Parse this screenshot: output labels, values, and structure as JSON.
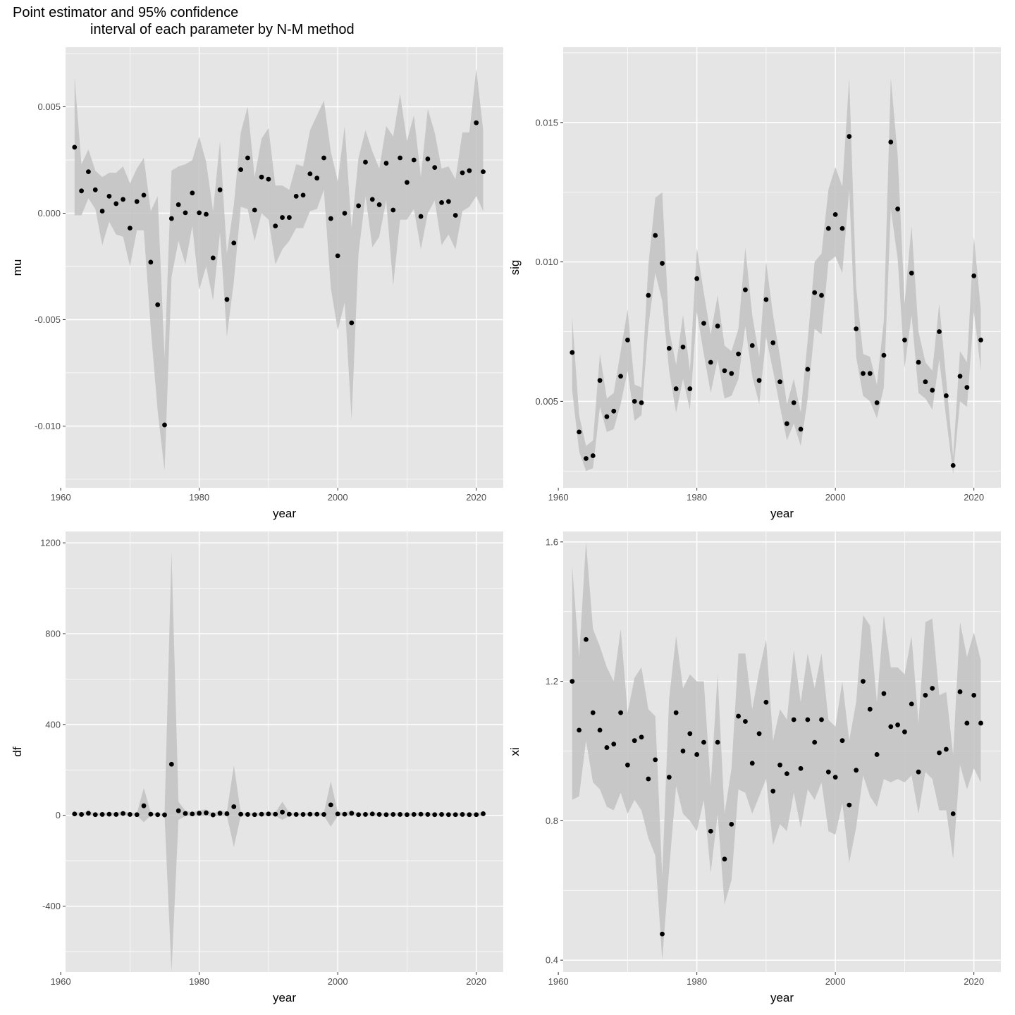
{
  "title": {
    "line1": "Point estimator and 95% confidence",
    "line2": "interval of each parameter by N-M method"
  },
  "colors": {
    "panel_bg": "#e5e5e5",
    "grid": "#ffffff",
    "ribbon": "#c2c2c2",
    "point": "#000000"
  },
  "chart_data": [
    {
      "type": "scatter",
      "id": "mu",
      "xlabel": "year",
      "ylabel": "mu",
      "xlim": [
        1960.7,
        2023.9
      ],
      "ylim": [
        -0.0129,
        0.0078
      ],
      "xticks": [
        1960,
        1980,
        2000,
        2020
      ],
      "xtick_labels": [
        "1960",
        "1980",
        "2000",
        "2020"
      ],
      "yticks": [
        -0.01,
        -0.005,
        0,
        0.005
      ],
      "ytick_labels": [
        "-0.010",
        "-0.005",
        "0.000",
        "0.005"
      ],
      "ribbon": "95% confidence interval",
      "x": [
        1962,
        1963,
        1964,
        1965,
        1966,
        1967,
        1968,
        1969,
        1970,
        1971,
        1972,
        1973,
        1974,
        1975,
        1976,
        1977,
        1978,
        1979,
        1980,
        1981,
        1982,
        1983,
        1984,
        1985,
        1986,
        1987,
        1988,
        1989,
        1990,
        1991,
        1992,
        1993,
        1994,
        1995,
        1996,
        1997,
        1998,
        1999,
        2000,
        2001,
        2002,
        2003,
        2004,
        2005,
        2006,
        2007,
        2008,
        2009,
        2010,
        2011,
        2012,
        2013,
        2014,
        2015,
        2016,
        2017,
        2018,
        2019,
        2020,
        2021
      ],
      "y": [
        0.0031,
        0.00105,
        0.00195,
        0.0011,
        0.0001,
        0.0008,
        0.00045,
        0.00065,
        -0.0007,
        0.00055,
        0.00085,
        -0.0023,
        -0.0043,
        -0.00995,
        -0.00025,
        0.0004,
        2e-05,
        0.00095,
        2e-05,
        -5e-05,
        -0.0021,
        0.0011,
        -0.00405,
        -0.0014,
        0.00205,
        0.0026,
        0.00015,
        0.0017,
        0.0016,
        -0.0006,
        -0.0002,
        -0.0002,
        0.0008,
        0.00085,
        0.00185,
        0.00165,
        0.0026,
        -0.00025,
        -0.002,
        0,
        -0.00515,
        0.00035,
        0.0024,
        0.00065,
        0.0004,
        0.00235,
        0.00015,
        0.0026,
        0.00145,
        0.0025,
        -0.00015,
        0.00255,
        0.00215,
        0.0005,
        0.00055,
        -0.0001,
        0.0019,
        0.002,
        0.00425,
        0.00195
      ],
      "lower": [
        -0.0001,
        -0.0001,
        0.0007,
        0.0002,
        -0.0015,
        -0.0004,
        -0.001,
        -0.0011,
        -0.0025,
        -0.0008,
        -0.0008,
        -0.0054,
        -0.0093,
        -0.0121,
        -0.003,
        -0.0013,
        -0.0024,
        -0.0006,
        -0.0036,
        -0.0025,
        -0.0041,
        -0.0009,
        -0.0058,
        -0.0032,
        0.0003,
        0.0002,
        -0.0013,
        0,
        -0.0003,
        -0.0024,
        -0.0017,
        -0.0013,
        -0.0007,
        -0.0007,
        0.0001,
        0.0002,
        0.0011,
        -0.0035,
        -0.0055,
        -0.0042,
        -0.0097,
        -0.0019,
        0.0008,
        -0.0016,
        -0.0011,
        0.0006,
        -0.0034,
        -0.0003,
        -0.0003,
        0.0002,
        -0.0017,
        0,
        0.0006,
        -0.0015,
        -0.001,
        -0.0017,
        0.0001,
        0.0003,
        0.0008,
        0.0001
      ],
      "upper": [
        0.0064,
        0.0023,
        0.003,
        0.002,
        0.0017,
        0.0019,
        0.0019,
        0.0022,
        0.0014,
        0.0021,
        0.0026,
        0.0001,
        0.0008,
        -0.0068,
        0.002,
        0.0022,
        0.0023,
        0.0025,
        0.0036,
        0.0024,
        0.0001,
        0.0034,
        -0.0019,
        0.0004,
        0.0038,
        0.005,
        0.0017,
        0.0035,
        0.004,
        0.0013,
        0.0013,
        0.0011,
        0.0023,
        0.0022,
        0.0039,
        0.0046,
        0.0053,
        0.0029,
        0.0015,
        0.0041,
        -0.0007,
        0.0026,
        0.0039,
        0.0029,
        0.0021,
        0.0041,
        0.0036,
        0.0056,
        0.0034,
        0.0046,
        0.0017,
        0.0049,
        0.0038,
        0.0021,
        0.0022,
        0.0016,
        0.0038,
        0.0038,
        0.0068,
        0.0039
      ]
    },
    {
      "type": "scatter",
      "id": "sig",
      "xlabel": "year",
      "ylabel": "sig",
      "xlim": [
        1960.7,
        2023.9
      ],
      "ylim": [
        0.0019,
        0.0177
      ],
      "xticks": [
        1960,
        1980,
        2000,
        2020
      ],
      "xtick_labels": [
        "1960",
        "1980",
        "2000",
        "2020"
      ],
      "yticks": [
        0.005,
        0.01,
        0.015
      ],
      "ytick_labels": [
        "0.005",
        "0.010",
        "0.015"
      ],
      "ribbon": "95% confidence interval",
      "x": [
        1962,
        1963,
        1964,
        1965,
        1966,
        1967,
        1968,
        1969,
        1970,
        1971,
        1972,
        1973,
        1974,
        1975,
        1976,
        1977,
        1978,
        1979,
        1980,
        1981,
        1982,
        1983,
        1984,
        1985,
        1986,
        1987,
        1988,
        1989,
        1990,
        1991,
        1992,
        1993,
        1994,
        1995,
        1996,
        1997,
        1998,
        1999,
        2000,
        2001,
        2002,
        2003,
        2004,
        2005,
        2006,
        2007,
        2008,
        2009,
        2010,
        2011,
        2012,
        2013,
        2014,
        2015,
        2016,
        2017,
        2018,
        2019,
        2020,
        2021
      ],
      "y": [
        0.00675,
        0.0039,
        0.00295,
        0.00305,
        0.00575,
        0.00445,
        0.00465,
        0.0059,
        0.0072,
        0.005,
        0.00495,
        0.0088,
        0.01095,
        0.00995,
        0.0069,
        0.00545,
        0.00695,
        0.00545,
        0.0094,
        0.0078,
        0.0064,
        0.0077,
        0.0061,
        0.006,
        0.0067,
        0.009,
        0.007,
        0.00575,
        0.00865,
        0.0071,
        0.0057,
        0.0042,
        0.00495,
        0.004,
        0.00615,
        0.0089,
        0.0088,
        0.0112,
        0.0117,
        0.0112,
        0.0145,
        0.0076,
        0.006,
        0.006,
        0.00495,
        0.00665,
        0.0143,
        0.0119,
        0.0072,
        0.0096,
        0.0064,
        0.0057,
        0.0054,
        0.0075,
        0.0052,
        0.0027,
        0.0059,
        0.0055,
        0.0095,
        0.0072
      ],
      "lower": [
        0.0054,
        0.0032,
        0.0025,
        0.0026,
        0.0048,
        0.0039,
        0.004,
        0.0049,
        0.0061,
        0.0043,
        0.0045,
        0.0077,
        0.0096,
        0.0086,
        0.0061,
        0.0046,
        0.0058,
        0.0047,
        0.0082,
        0.0067,
        0.0053,
        0.0065,
        0.0051,
        0.0052,
        0.0058,
        0.0077,
        0.0059,
        0.0049,
        0.0073,
        0.0061,
        0.0048,
        0.0036,
        0.0042,
        0.0034,
        0.0051,
        0.0076,
        0.0074,
        0.01,
        0.0102,
        0.0096,
        0.0126,
        0.0066,
        0.0052,
        0.005,
        0.0044,
        0.0055,
        0.0119,
        0.0101,
        0.0062,
        0.0081,
        0.0053,
        0.0051,
        0.0047,
        0.0065,
        0.0044,
        0.0024,
        0.005,
        0.0048,
        0.0082,
        0.0061
      ],
      "upper": [
        0.008,
        0.0045,
        0.0034,
        0.0036,
        0.0067,
        0.0051,
        0.0053,
        0.0068,
        0.0083,
        0.0056,
        0.0055,
        0.0099,
        0.0123,
        0.0125,
        0.0076,
        0.0063,
        0.0081,
        0.0061,
        0.0105,
        0.0089,
        0.0074,
        0.0088,
        0.007,
        0.0068,
        0.0076,
        0.0105,
        0.0081,
        0.0066,
        0.01,
        0.0081,
        0.0066,
        0.0049,
        0.0058,
        0.0046,
        0.0072,
        0.01,
        0.0103,
        0.0126,
        0.0134,
        0.0127,
        0.0166,
        0.0091,
        0.0067,
        0.0066,
        0.0056,
        0.0079,
        0.0166,
        0.0138,
        0.0085,
        0.0113,
        0.0075,
        0.0064,
        0.0061,
        0.0085,
        0.0058,
        0.003,
        0.0068,
        0.0064,
        0.0109,
        0.0083
      ]
    },
    {
      "type": "scatter",
      "id": "df",
      "xlabel": "year",
      "ylabel": "df",
      "xlim": [
        1960.7,
        2023.9
      ],
      "ylim": [
        -690,
        1250
      ],
      "xticks": [
        1960,
        1980,
        2000,
        2020
      ],
      "xtick_labels": [
        "1960",
        "1980",
        "2000",
        "2020"
      ],
      "yticks": [
        -400,
        0,
        400,
        800,
        1200
      ],
      "ytick_labels": [
        "-400",
        "0",
        "400",
        "800",
        "1200"
      ],
      "ribbon": "95% confidence interval",
      "x": [
        1962,
        1963,
        1964,
        1965,
        1966,
        1967,
        1968,
        1969,
        1970,
        1971,
        1972,
        1973,
        1974,
        1975,
        1976,
        1977,
        1978,
        1979,
        1980,
        1981,
        1982,
        1983,
        1984,
        1985,
        1986,
        1987,
        1988,
        1989,
        1990,
        1991,
        1992,
        1993,
        1994,
        1995,
        1996,
        1997,
        1998,
        1999,
        2000,
        2001,
        2002,
        2003,
        2004,
        2005,
        2006,
        2007,
        2008,
        2009,
        2010,
        2011,
        2012,
        2013,
        2014,
        2015,
        2016,
        2017,
        2018,
        2019,
        2020,
        2021
      ],
      "y": [
        6,
        4,
        9,
        3,
        4,
        5,
        4,
        8,
        4,
        3,
        42,
        5,
        3,
        2,
        225,
        20,
        8,
        6,
        9,
        11,
        2,
        9,
        7,
        38,
        5,
        4,
        3,
        5,
        6,
        5,
        14,
        5,
        4,
        4,
        5,
        5,
        4,
        46,
        6,
        5,
        9,
        3,
        4,
        6,
        4,
        3,
        4,
        4,
        3,
        4,
        5,
        4,
        3,
        4,
        3,
        3,
        4,
        3,
        3,
        7
      ],
      "lower": [
        -2,
        -2,
        -1,
        -2,
        -2,
        -2,
        -2,
        -1,
        -2,
        -2,
        -30,
        -2,
        -2,
        -3,
        -690,
        -20,
        -3,
        -2,
        -2,
        -3,
        -3,
        -4,
        -2,
        -140,
        -2,
        -2,
        -2,
        -2,
        -2,
        -2,
        -20,
        -2,
        -2,
        -2,
        -2,
        -2,
        -2,
        -50,
        -2,
        -2,
        -2,
        -2,
        -2,
        -2,
        -2,
        -2,
        -2,
        -2,
        -2,
        -2,
        -2,
        -2,
        -2,
        -2,
        -2,
        -2,
        -2,
        -2,
        -2,
        -2
      ],
      "upper": [
        14,
        12,
        18,
        9,
        11,
        12,
        11,
        18,
        11,
        9,
        120,
        12,
        8,
        7,
        1160,
        60,
        20,
        14,
        22,
        26,
        8,
        22,
        16,
        220,
        12,
        10,
        9,
        12,
        14,
        12,
        60,
        12,
        11,
        10,
        12,
        12,
        10,
        150,
        14,
        12,
        20,
        9,
        10,
        14,
        10,
        9,
        10,
        10,
        9,
        10,
        12,
        10,
        9,
        10,
        9,
        9,
        10,
        9,
        9,
        16
      ]
    },
    {
      "type": "scatter",
      "id": "xi",
      "xlabel": "year",
      "ylabel": "xi",
      "xlim": [
        1960.7,
        2023.9
      ],
      "ylim": [
        0.366,
        1.63
      ],
      "xticks": [
        1960,
        1980,
        2000,
        2020
      ],
      "xtick_labels": [
        "1960",
        "1980",
        "2000",
        "2020"
      ],
      "yticks": [
        0.4,
        0.8,
        1.2,
        1.6
      ],
      "ytick_labels": [
        "0.4",
        "0.8",
        "1.2",
        "1.6"
      ],
      "ribbon": "95% confidence interval",
      "x": [
        1962,
        1963,
        1964,
        1965,
        1966,
        1967,
        1968,
        1969,
        1970,
        1971,
        1972,
        1973,
        1974,
        1975,
        1976,
        1977,
        1978,
        1979,
        1980,
        1981,
        1982,
        1983,
        1984,
        1985,
        1986,
        1987,
        1988,
        1989,
        1990,
        1991,
        1992,
        1993,
        1994,
        1995,
        1996,
        1997,
        1998,
        1999,
        2000,
        2001,
        2002,
        2003,
        2004,
        2005,
        2006,
        2007,
        2008,
        2009,
        2010,
        2011,
        2012,
        2013,
        2014,
        2015,
        2016,
        2017,
        2018,
        2019,
        2020,
        2021
      ],
      "y": [
        1.2,
        1.06,
        1.32,
        1.11,
        1.06,
        1.01,
        1.02,
        1.11,
        0.96,
        1.03,
        1.04,
        0.92,
        0.975,
        0.475,
        0.925,
        1.11,
        1.0,
        1.05,
        0.99,
        1.025,
        0.77,
        1.025,
        0.69,
        0.79,
        1.1,
        1.085,
        0.965,
        1.05,
        1.14,
        0.885,
        0.96,
        0.935,
        1.09,
        0.95,
        1.09,
        1.025,
        1.09,
        0.94,
        0.925,
        1.03,
        0.845,
        0.945,
        1.2,
        1.12,
        0.99,
        1.165,
        1.07,
        1.075,
        1.055,
        1.135,
        0.94,
        1.16,
        1.18,
        0.995,
        1.005,
        0.82,
        1.17,
        1.08,
        1.16,
        1.08
      ],
      "lower": [
        0.86,
        0.87,
        1.03,
        0.91,
        0.89,
        0.84,
        0.83,
        0.88,
        0.82,
        0.86,
        0.83,
        0.75,
        0.7,
        0.4,
        0.66,
        0.9,
        0.82,
        0.8,
        0.77,
        0.86,
        0.65,
        0.82,
        0.56,
        0.63,
        0.89,
        0.88,
        0.82,
        0.87,
        0.92,
        0.73,
        0.79,
        0.77,
        0.88,
        0.78,
        0.89,
        0.86,
        0.91,
        0.77,
        0.76,
        0.85,
        0.68,
        0.78,
        0.93,
        0.87,
        0.84,
        0.92,
        0.91,
        0.92,
        0.91,
        0.93,
        0.82,
        0.94,
        0.92,
        0.83,
        0.83,
        0.69,
        0.96,
        0.89,
        0.95,
        0.91
      ],
      "upper": [
        1.53,
        1.27,
        1.6,
        1.35,
        1.3,
        1.24,
        1.2,
        1.35,
        1.11,
        1.21,
        1.24,
        1.12,
        1.1,
        0.64,
        1.15,
        1.33,
        1.18,
        1.22,
        1.2,
        1.2,
        0.9,
        1.22,
        0.82,
        0.95,
        1.28,
        1.28,
        1.12,
        1.23,
        1.32,
        1.03,
        1.12,
        1.09,
        1.29,
        1.14,
        1.28,
        1.18,
        1.28,
        1.09,
        1.07,
        1.2,
        1.03,
        1.14,
        1.39,
        1.36,
        1.14,
        1.39,
        1.24,
        1.24,
        1.22,
        1.33,
        1.08,
        1.37,
        1.38,
        1.16,
        1.17,
        0.99,
        1.37,
        1.27,
        1.34,
        1.26
      ]
    }
  ]
}
